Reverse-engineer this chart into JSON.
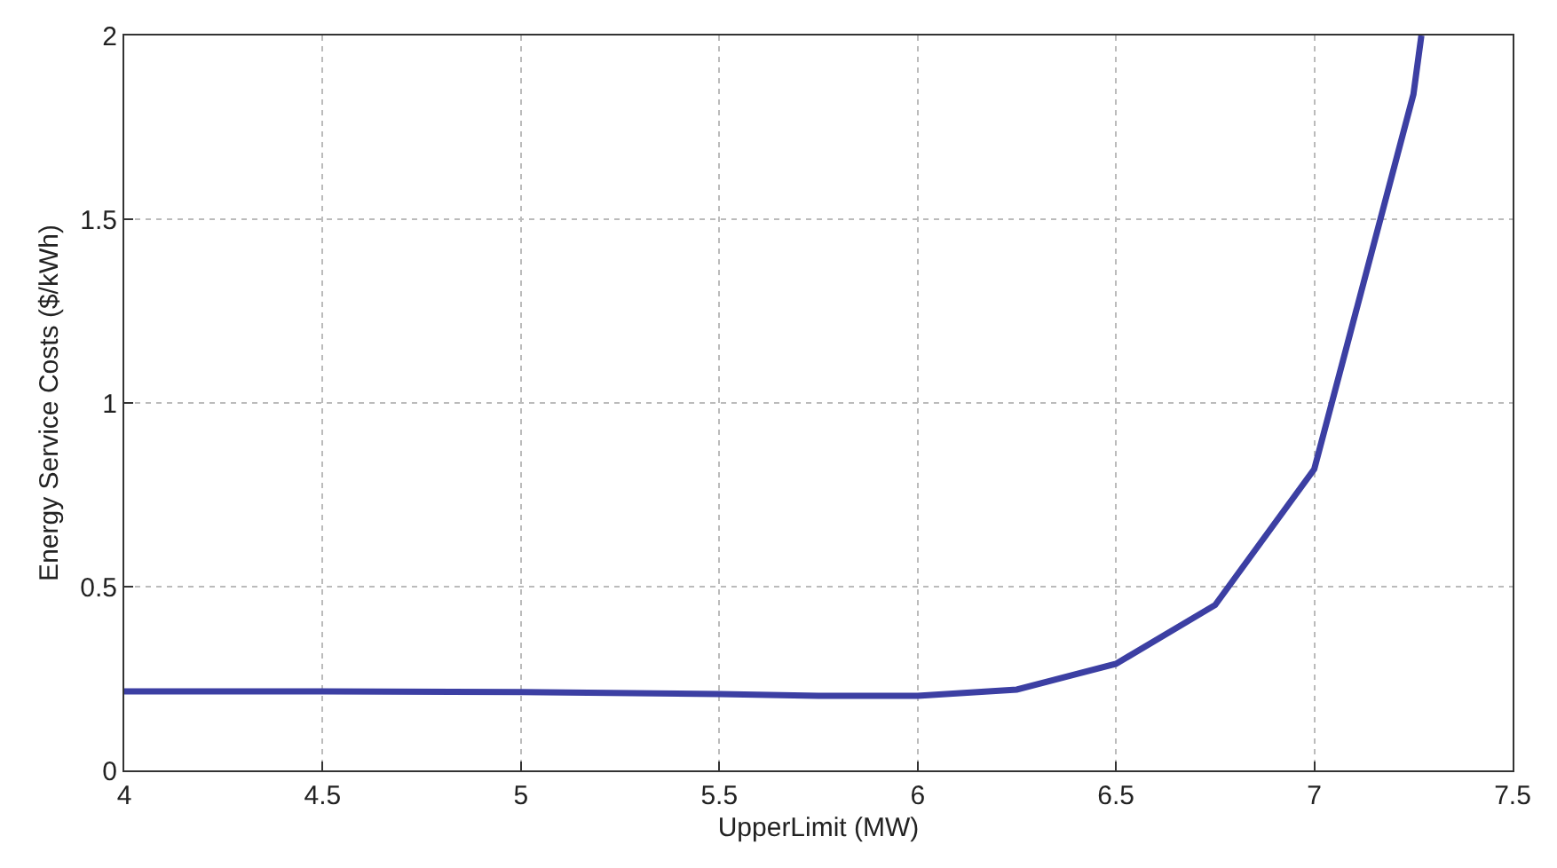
{
  "chart_data": {
    "type": "line",
    "xlabel": "UpperLimit (MW)",
    "ylabel": "Energy Service Costs ($/kWh)",
    "x": [
      4,
      4.5,
      5,
      5.5,
      5.75,
      6,
      6.25,
      6.5,
      6.75,
      7,
      7.25,
      7.27
    ],
    "series": [
      {
        "color": "#3c3fa3",
        "values": [
          0.215,
          0.215,
          0.213,
          0.208,
          0.203,
          0.203,
          0.22,
          0.29,
          0.45,
          0.82,
          1.84,
          2.0
        ]
      }
    ],
    "xlim": [
      4,
      7.5
    ],
    "xticks": [
      4,
      4.5,
      5,
      5.5,
      6,
      6.5,
      7,
      7.5
    ],
    "ylim": [
      0,
      2
    ],
    "yticks": [
      0,
      0.5,
      1,
      1.5,
      2
    ],
    "grid": true,
    "marker": "none",
    "line_style": "solid"
  }
}
